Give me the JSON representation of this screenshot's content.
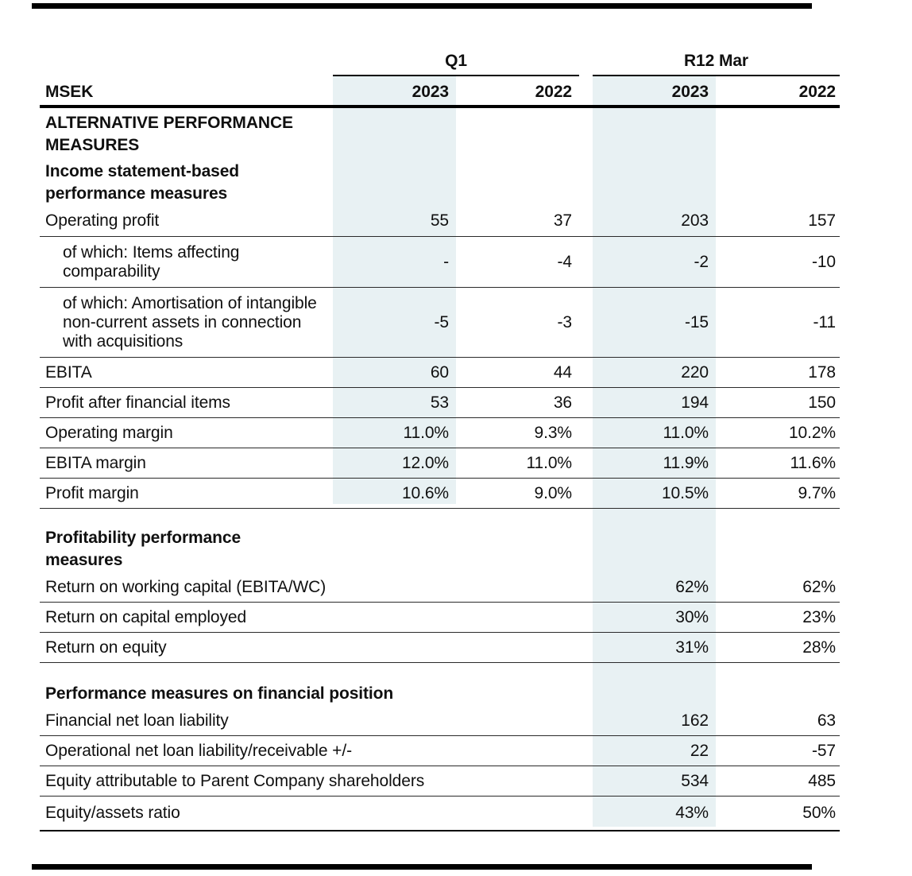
{
  "colors": {
    "highlight_column": "#e8f1f3"
  },
  "header": {
    "unit": "MSEK",
    "groups": [
      {
        "label": "Q1"
      },
      {
        "label": "R12 Mar"
      }
    ],
    "year_cols": [
      "2023",
      "2022",
      "2023",
      "2022"
    ]
  },
  "rows": [
    {
      "label": "ALTERNATIVE PERFORMANCE MEASURES"
    },
    {
      "label": "Income statement-based performance measures"
    },
    {
      "label": "Operating profit",
      "v": [
        "55",
        "37",
        "203",
        "157"
      ]
    },
    {
      "label": "of which: Items affecting comparability",
      "v": [
        "-",
        "-4",
        "-2",
        "-10"
      ]
    },
    {
      "label": "of which: Amortisation of intangible non-current assets in connection with acquisitions",
      "v": [
        "-5",
        "-3",
        "-15",
        "-11"
      ]
    },
    {
      "label": "EBITA",
      "v": [
        "60",
        "44",
        "220",
        "178"
      ]
    },
    {
      "label": "Profit after financial items",
      "v": [
        "53",
        "36",
        "194",
        "150"
      ]
    },
    {
      "label": "Operating margin",
      "v": [
        "11.0%",
        "9.3%",
        "11.0%",
        "10.2%"
      ]
    },
    {
      "label": "EBITA margin",
      "v": [
        "12.0%",
        "11.0%",
        "11.9%",
        "11.6%"
      ]
    },
    {
      "label": "Profit margin",
      "v": [
        "10.6%",
        "9.0%",
        "10.5%",
        "9.7%"
      ]
    },
    {
      "label": "Profitability performance measures"
    },
    {
      "label": "Return on working capital (EBITA/WC)",
      "v": [
        "62%",
        "62%"
      ]
    },
    {
      "label": "Return on capital employed",
      "v": [
        "30%",
        "23%"
      ]
    },
    {
      "label": "Return on equity",
      "v": [
        "31%",
        "28%"
      ]
    },
    {
      "label": "Performance measures on financial position"
    },
    {
      "label": "Financial net loan liability",
      "v": [
        "162",
        "63"
      ]
    },
    {
      "label": "Operational net loan liability/receivable +/-",
      "v": [
        "22",
        "-57"
      ]
    },
    {
      "label": "Equity attributable to Parent Company shareholders",
      "v": [
        "534",
        "485"
      ]
    },
    {
      "label": "Equity/assets ratio",
      "v": [
        "43%",
        "50%"
      ]
    }
  ]
}
